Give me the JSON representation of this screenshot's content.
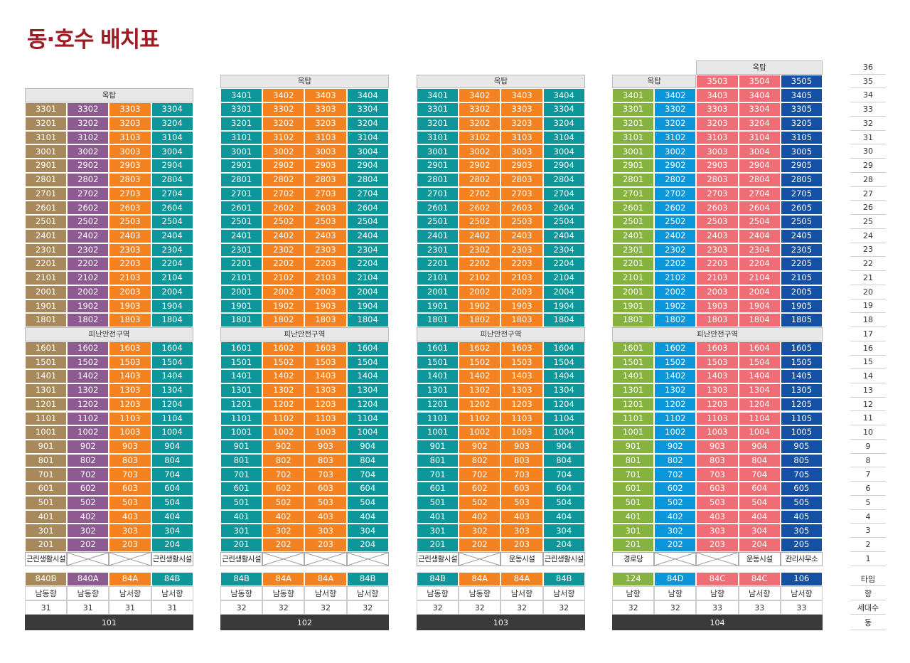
{
  "title": "동·호수 배치표",
  "labels": {
    "roof": "옥탑",
    "refuge": "피난안전구역"
  },
  "legend": {
    "floors": [
      "36",
      "35",
      "34",
      "33",
      "32",
      "31",
      "30",
      "29",
      "28",
      "27",
      "26",
      "25",
      "24",
      "23",
      "22",
      "21",
      "20",
      "19",
      "18",
      "17",
      "16",
      "15",
      "14",
      "13",
      "12",
      "11",
      "10",
      "9",
      "8",
      "7",
      "6",
      "5",
      "4",
      "3",
      "2",
      "1"
    ],
    "type": "타입",
    "direction": "향",
    "households": "세대수",
    "dong": "동"
  },
  "colors": {
    "84B": "#0e979b",
    "84A": "#f58220",
    "840B": "#a8895c",
    "840A": "#8d5b91",
    "124": "#86b23f",
    "84D": "#0b96da",
    "84C": "#ef6d74",
    "106": "#1450a3"
  },
  "buildings": [
    {
      "dong": "101",
      "topFloor": 33,
      "roofUnits": [],
      "units": [
        "01",
        "02",
        "03",
        "04"
      ],
      "types": [
        "840B",
        "840A",
        "84A",
        "84B"
      ],
      "directions": [
        "남동향",
        "남동향",
        "남서향",
        "남서향"
      ],
      "households": [
        "31",
        "31",
        "31",
        "31"
      ],
      "ground": [
        "근린생활시설",
        "",
        "",
        "근린생활시설"
      ],
      "secondFloor": [
        true,
        true,
        true,
        true
      ]
    },
    {
      "dong": "102",
      "topFloor": 34,
      "roofUnits": [],
      "units": [
        "01",
        "02",
        "03",
        "04"
      ],
      "types": [
        "84B",
        "84A",
        "84A",
        "84B"
      ],
      "directions": [
        "남동향",
        "남동향",
        "남서향",
        "남서향"
      ],
      "households": [
        "32",
        "32",
        "32",
        "32"
      ],
      "ground": [
        "근린생활시설",
        "",
        "",
        ""
      ],
      "secondFloor": [
        true,
        true,
        true,
        true
      ]
    },
    {
      "dong": "103",
      "topFloor": 34,
      "roofUnits": [],
      "units": [
        "01",
        "02",
        "03",
        "04"
      ],
      "types": [
        "84B",
        "84A",
        "84A",
        "84B"
      ],
      "directions": [
        "남동향",
        "남동향",
        "남서향",
        "남서향"
      ],
      "households": [
        "32",
        "32",
        "32",
        "32"
      ],
      "ground": [
        "근린생활시설",
        "",
        "운동시설",
        "근린생활시설"
      ],
      "secondFloor": [
        true,
        true,
        true,
        true
      ]
    },
    {
      "dong": "104",
      "topFloor": 34,
      "roofUnits": [
        "3503",
        "3504",
        "3505"
      ],
      "units": [
        "01",
        "02",
        "03",
        "04",
        "05"
      ],
      "types": [
        "124",
        "84D",
        "84C",
        "84C",
        "106"
      ],
      "directions": [
        "남향",
        "남향",
        "남향",
        "남서향",
        "남서향"
      ],
      "households": [
        "32",
        "32",
        "33",
        "33",
        "33"
      ],
      "ground": [
        "경로당",
        "",
        "",
        "운동시설",
        "관리사무소"
      ],
      "secondFloor": [
        true,
        true,
        true,
        true,
        true
      ]
    }
  ]
}
